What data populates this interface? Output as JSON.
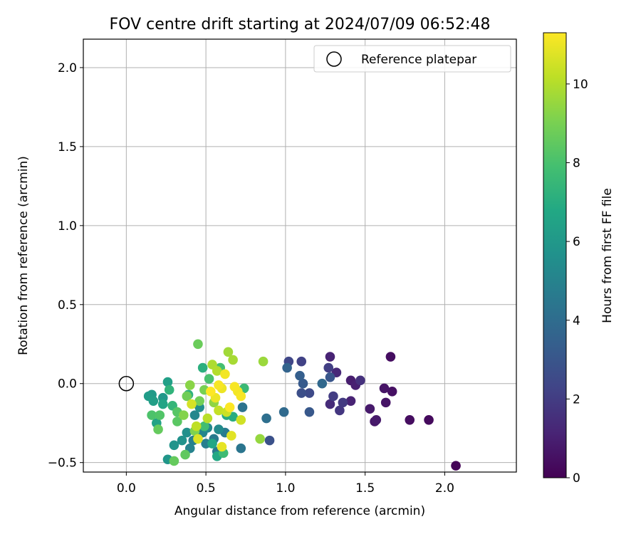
{
  "chart_data": {
    "type": "scatter",
    "title": "FOV centre drift starting at 2024/07/09 06:52:48",
    "xlabel": "Angular distance from reference (arcmin)",
    "ylabel": "Rotation from reference (arcmin)",
    "xlim": [
      -0.27,
      2.45
    ],
    "ylim": [
      -0.56,
      2.18
    ],
    "xticks": [
      "0.0",
      "0.5",
      "1.0",
      "1.5",
      "2.0"
    ],
    "xtick_values": [
      0.0,
      0.5,
      1.0,
      1.5,
      2.0
    ],
    "yticks": [
      "−0.5",
      "0.0",
      "0.5",
      "1.0",
      "1.5",
      "2.0"
    ],
    "ytick_values": [
      -0.5,
      0.0,
      0.5,
      1.0,
      1.5,
      2.0
    ],
    "grid": true,
    "legend": {
      "position": "upper right",
      "entries": [
        {
          "label": "Reference platepar",
          "marker": "open-circle"
        }
      ]
    },
    "reference_point": {
      "x": 0.0,
      "y": 0.0
    },
    "colorbar": {
      "label": "Hours from first FF file",
      "colormap": "viridis",
      "range": [
        0,
        11.3
      ],
      "ticks": [
        0,
        2,
        4,
        6,
        8,
        10
      ]
    },
    "points": [
      {
        "x": 2.07,
        "y": -0.52,
        "c": 0.1
      },
      {
        "x": 1.9,
        "y": -0.23,
        "c": 0.3
      },
      {
        "x": 1.78,
        "y": -0.23,
        "c": 0.4
      },
      {
        "x": 1.66,
        "y": 0.17,
        "c": 0.4
      },
      {
        "x": 1.67,
        "y": -0.05,
        "c": 0.5
      },
      {
        "x": 1.62,
        "y": -0.03,
        "c": 0.6
      },
      {
        "x": 1.63,
        "y": -0.12,
        "c": 0.6
      },
      {
        "x": 1.56,
        "y": -0.24,
        "c": 0.7
      },
      {
        "x": 1.57,
        "y": -0.23,
        "c": 0.8
      },
      {
        "x": 1.53,
        "y": -0.16,
        "c": 0.8
      },
      {
        "x": 1.41,
        "y": 0.02,
        "c": 0.9
      },
      {
        "x": 1.44,
        "y": -0.01,
        "c": 1.0
      },
      {
        "x": 1.41,
        "y": -0.11,
        "c": 1.1
      },
      {
        "x": 1.28,
        "y": 0.17,
        "c": 1.1
      },
      {
        "x": 1.32,
        "y": 0.07,
        "c": 1.3
      },
      {
        "x": 1.28,
        "y": -0.13,
        "c": 1.4
      },
      {
        "x": 1.47,
        "y": 0.02,
        "c": 1.6
      },
      {
        "x": 1.34,
        "y": -0.17,
        "c": 1.8
      },
      {
        "x": 1.36,
        "y": -0.12,
        "c": 1.9
      },
      {
        "x": 1.3,
        "y": -0.08,
        "c": 2.0
      },
      {
        "x": 1.27,
        "y": 0.1,
        "c": 2.1
      },
      {
        "x": 1.1,
        "y": 0.14,
        "c": 2.2
      },
      {
        "x": 1.02,
        "y": 0.14,
        "c": 2.4
      },
      {
        "x": 1.15,
        "y": -0.06,
        "c": 2.5
      },
      {
        "x": 1.1,
        "y": -0.06,
        "c": 2.7
      },
      {
        "x": 0.9,
        "y": -0.36,
        "c": 2.8
      },
      {
        "x": 1.28,
        "y": 0.04,
        "c": 3.0
      },
      {
        "x": 1.15,
        "y": -0.18,
        "c": 3.1
      },
      {
        "x": 1.11,
        "y": 0.0,
        "c": 3.2
      },
      {
        "x": 1.09,
        "y": 0.05,
        "c": 3.4
      },
      {
        "x": 1.01,
        "y": 0.1,
        "c": 3.6
      },
      {
        "x": 1.23,
        "y": 0.0,
        "c": 3.8
      },
      {
        "x": 0.99,
        "y": -0.18,
        "c": 3.9
      },
      {
        "x": 0.88,
        "y": -0.22,
        "c": 4.1
      },
      {
        "x": 0.73,
        "y": -0.15,
        "c": 4.3
      },
      {
        "x": 0.72,
        "y": -0.41,
        "c": 4.4
      },
      {
        "x": 0.57,
        "y": -0.43,
        "c": 4.5
      },
      {
        "x": 0.55,
        "y": -0.35,
        "c": 4.6
      },
      {
        "x": 0.62,
        "y": -0.31,
        "c": 4.7
      },
      {
        "x": 0.5,
        "y": -0.38,
        "c": 4.8
      },
      {
        "x": 0.42,
        "y": -0.36,
        "c": 4.9
      },
      {
        "x": 0.4,
        "y": -0.41,
        "c": 5.0
      },
      {
        "x": 0.48,
        "y": -0.31,
        "c": 5.1
      },
      {
        "x": 0.43,
        "y": -0.2,
        "c": 5.2
      },
      {
        "x": 0.51,
        "y": -0.28,
        "c": 5.3
      },
      {
        "x": 0.58,
        "y": -0.29,
        "c": 5.4
      },
      {
        "x": 0.46,
        "y": -0.15,
        "c": 5.5
      },
      {
        "x": 0.38,
        "y": -0.31,
        "c": 5.6
      },
      {
        "x": 0.35,
        "y": -0.36,
        "c": 5.7
      },
      {
        "x": 0.3,
        "y": -0.39,
        "c": 5.8
      },
      {
        "x": 0.26,
        "y": -0.48,
        "c": 5.9
      },
      {
        "x": 0.23,
        "y": -0.09,
        "c": 6.0
      },
      {
        "x": 0.16,
        "y": -0.07,
        "c": 6.1
      },
      {
        "x": 0.14,
        "y": -0.08,
        "c": 6.2
      },
      {
        "x": 0.17,
        "y": -0.11,
        "c": 6.3
      },
      {
        "x": 0.26,
        "y": 0.01,
        "c": 6.4
      },
      {
        "x": 0.19,
        "y": -0.25,
        "c": 6.5
      },
      {
        "x": 0.23,
        "y": -0.13,
        "c": 6.6
      },
      {
        "x": 0.54,
        "y": -0.38,
        "c": 6.7
      },
      {
        "x": 0.57,
        "y": -0.46,
        "c": 6.8
      },
      {
        "x": 0.63,
        "y": -0.2,
        "c": 6.9
      },
      {
        "x": 0.67,
        "y": -0.21,
        "c": 7.0
      },
      {
        "x": 0.48,
        "y": 0.1,
        "c": 7.1
      },
      {
        "x": 0.39,
        "y": -0.07,
        "c": 7.2
      },
      {
        "x": 0.27,
        "y": -0.04,
        "c": 7.3
      },
      {
        "x": 0.29,
        "y": -0.14,
        "c": 7.4
      },
      {
        "x": 0.74,
        "y": -0.03,
        "c": 7.6
      },
      {
        "x": 0.61,
        "y": -0.44,
        "c": 7.7
      },
      {
        "x": 0.49,
        "y": -0.27,
        "c": 7.8
      },
      {
        "x": 0.59,
        "y": 0.1,
        "c": 7.9
      },
      {
        "x": 0.52,
        "y": 0.03,
        "c": 8.0
      },
      {
        "x": 0.16,
        "y": -0.2,
        "c": 8.1
      },
      {
        "x": 0.21,
        "y": -0.2,
        "c": 8.2
      },
      {
        "x": 0.32,
        "y": -0.18,
        "c": 8.3
      },
      {
        "x": 0.32,
        "y": -0.24,
        "c": 8.4
      },
      {
        "x": 0.37,
        "y": -0.45,
        "c": 8.5
      },
      {
        "x": 0.3,
        "y": -0.49,
        "c": 8.6
      },
      {
        "x": 0.2,
        "y": -0.29,
        "c": 8.6
      },
      {
        "x": 0.45,
        "y": 0.25,
        "c": 8.7
      },
      {
        "x": 0.38,
        "y": -0.08,
        "c": 8.8
      },
      {
        "x": 0.46,
        "y": -0.11,
        "c": 8.9
      },
      {
        "x": 0.49,
        "y": -0.04,
        "c": 9.0
      },
      {
        "x": 0.43,
        "y": -0.3,
        "c": 9.1
      },
      {
        "x": 0.36,
        "y": -0.2,
        "c": 9.2
      },
      {
        "x": 0.4,
        "y": -0.01,
        "c": 9.3
      },
      {
        "x": 0.55,
        "y": -0.12,
        "c": 9.4
      },
      {
        "x": 0.84,
        "y": -0.35,
        "c": 9.5
      },
      {
        "x": 0.86,
        "y": 0.14,
        "c": 9.6
      },
      {
        "x": 0.64,
        "y": 0.2,
        "c": 9.7
      },
      {
        "x": 0.67,
        "y": 0.15,
        "c": 9.8
      },
      {
        "x": 0.54,
        "y": 0.12,
        "c": 9.9
      },
      {
        "x": 0.57,
        "y": 0.08,
        "c": 10.0
      },
      {
        "x": 0.51,
        "y": -0.22,
        "c": 10.1
      },
      {
        "x": 0.44,
        "y": -0.27,
        "c": 10.2
      },
      {
        "x": 0.58,
        "y": -0.17,
        "c": 10.3
      },
      {
        "x": 0.63,
        "y": -0.18,
        "c": 10.4
      },
      {
        "x": 0.72,
        "y": -0.23,
        "c": 10.5
      },
      {
        "x": 0.41,
        "y": -0.13,
        "c": 10.6
      },
      {
        "x": 0.45,
        "y": -0.35,
        "c": 10.7
      },
      {
        "x": 0.66,
        "y": -0.33,
        "c": 10.8
      },
      {
        "x": 0.6,
        "y": -0.4,
        "c": 10.9
      },
      {
        "x": 0.56,
        "y": -0.09,
        "c": 11.0
      },
      {
        "x": 0.6,
        "y": -0.03,
        "c": 11.0
      },
      {
        "x": 0.62,
        "y": 0.06,
        "c": 11.1
      },
      {
        "x": 0.7,
        "y": -0.05,
        "c": 11.1
      },
      {
        "x": 0.72,
        "y": -0.08,
        "c": 11.2
      },
      {
        "x": 0.68,
        "y": -0.02,
        "c": 11.2
      },
      {
        "x": 0.58,
        "y": -0.01,
        "c": 11.2
      },
      {
        "x": 0.65,
        "y": -0.15,
        "c": 11.3
      },
      {
        "x": 0.53,
        "y": -0.05,
        "c": 11.3
      }
    ]
  }
}
